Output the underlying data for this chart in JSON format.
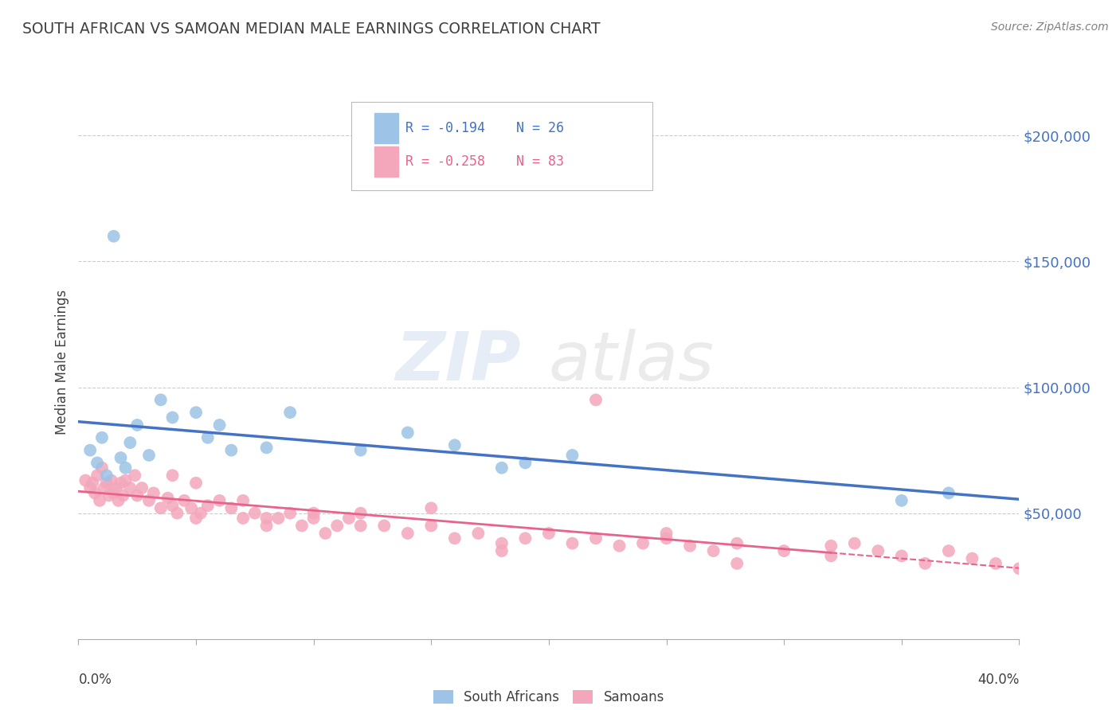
{
  "title": "SOUTH AFRICAN VS SAMOAN MEDIAN MALE EARNINGS CORRELATION CHART",
  "source": "Source: ZipAtlas.com",
  "ylabel": "Median Male Earnings",
  "ytick_labels": [
    "$50,000",
    "$100,000",
    "$150,000",
    "$200,000"
  ],
  "ytick_values": [
    50000,
    100000,
    150000,
    200000
  ],
  "xlim": [
    0.0,
    0.4
  ],
  "ylim": [
    0,
    220000
  ],
  "legend_r_sa": "R = -0.194",
  "legend_n_sa": "N = 26",
  "legend_r_sam": "R = -0.258",
  "legend_n_sam": "N = 83",
  "legend_label_sa": "South Africans",
  "legend_label_sam": "Samoans",
  "blue_color": "#4472C4",
  "blue_light": "#9DC3E6",
  "pink_color": "#E8638C",
  "pink_light": "#F4A7BB",
  "title_color": "#404040",
  "background_color": "#FFFFFF",
  "watermark_zip": "ZIP",
  "watermark_atlas": "atlas",
  "sa_x": [
    0.005,
    0.008,
    0.01,
    0.012,
    0.015,
    0.018,
    0.02,
    0.022,
    0.025,
    0.03,
    0.035,
    0.04,
    0.05,
    0.055,
    0.06,
    0.065,
    0.08,
    0.09,
    0.12,
    0.14,
    0.16,
    0.18,
    0.19,
    0.21,
    0.35,
    0.37
  ],
  "sa_y": [
    75000,
    70000,
    80000,
    65000,
    160000,
    72000,
    68000,
    78000,
    85000,
    73000,
    95000,
    88000,
    90000,
    80000,
    85000,
    75000,
    76000,
    90000,
    75000,
    82000,
    77000,
    68000,
    70000,
    73000,
    55000,
    58000
  ],
  "sam_x": [
    0.003,
    0.005,
    0.006,
    0.007,
    0.008,
    0.009,
    0.01,
    0.011,
    0.012,
    0.013,
    0.014,
    0.015,
    0.016,
    0.017,
    0.018,
    0.019,
    0.02,
    0.022,
    0.024,
    0.025,
    0.027,
    0.03,
    0.032,
    0.035,
    0.038,
    0.04,
    0.042,
    0.045,
    0.048,
    0.05,
    0.052,
    0.055,
    0.06,
    0.065,
    0.07,
    0.075,
    0.08,
    0.085,
    0.09,
    0.095,
    0.1,
    0.105,
    0.11,
    0.115,
    0.12,
    0.13,
    0.14,
    0.15,
    0.16,
    0.17,
    0.18,
    0.19,
    0.2,
    0.21,
    0.22,
    0.23,
    0.24,
    0.25,
    0.26,
    0.27,
    0.28,
    0.3,
    0.32,
    0.33,
    0.34,
    0.35,
    0.36,
    0.37,
    0.38,
    0.39,
    0.4,
    0.22,
    0.28,
    0.15,
    0.08,
    0.05,
    0.12,
    0.18,
    0.25,
    0.32,
    0.1,
    0.07,
    0.04
  ],
  "sam_y": [
    63000,
    60000,
    62000,
    58000,
    65000,
    55000,
    68000,
    60000,
    62000,
    57000,
    63000,
    58000,
    60000,
    55000,
    62000,
    57000,
    63000,
    60000,
    65000,
    57000,
    60000,
    55000,
    58000,
    52000,
    56000,
    53000,
    50000,
    55000,
    52000,
    48000,
    50000,
    53000,
    55000,
    52000,
    48000,
    50000,
    45000,
    48000,
    50000,
    45000,
    48000,
    42000,
    45000,
    48000,
    50000,
    45000,
    42000,
    45000,
    40000,
    42000,
    38000,
    40000,
    42000,
    38000,
    40000,
    37000,
    38000,
    40000,
    37000,
    35000,
    38000,
    35000,
    37000,
    38000,
    35000,
    33000,
    30000,
    35000,
    32000,
    30000,
    28000,
    95000,
    30000,
    52000,
    48000,
    62000,
    45000,
    35000,
    42000,
    33000,
    50000,
    55000,
    65000
  ]
}
